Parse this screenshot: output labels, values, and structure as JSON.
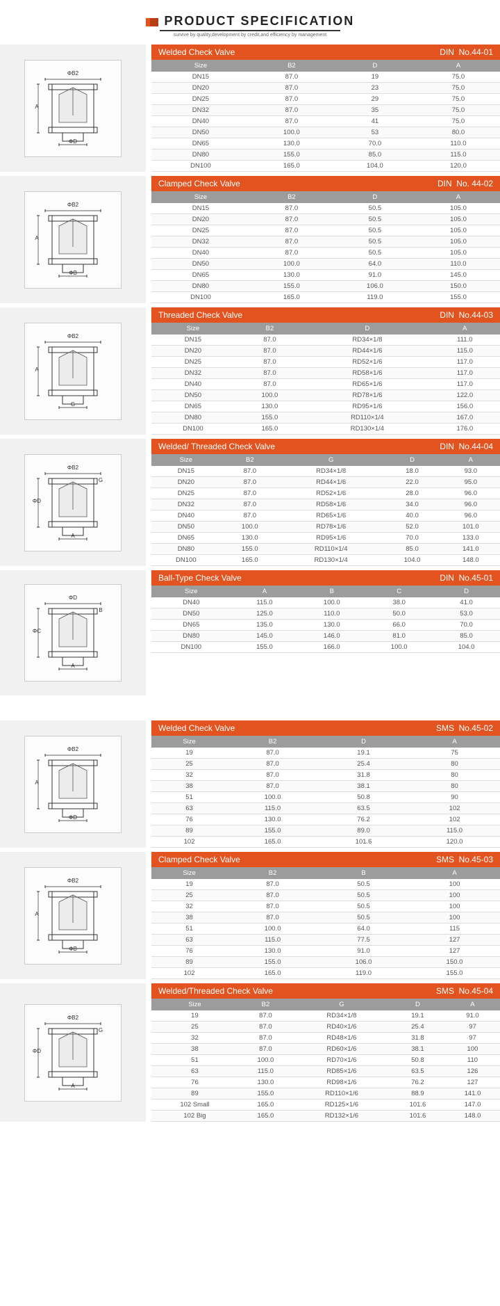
{
  "header": {
    "title": "PRODUCT SPECIFICATION",
    "subtitle": "survive by quality,development by credit,and efficiency by management"
  },
  "colors": {
    "accent": "#e2531f",
    "header_gray": "#9c9c9c",
    "diagram_bg": "#f1f1f1",
    "row_border": "#dddddd",
    "text": "#555555"
  },
  "sections": [
    {
      "title": "Welded Check Valve",
      "standard": "DIN",
      "part_no": "No.44-01",
      "diagram_labels": [
        "ΦB2",
        "A",
        "ΦD"
      ],
      "columns": [
        "Size",
        "B2",
        "D",
        "A"
      ],
      "rows": [
        [
          "DN15",
          "87.0",
          "19",
          "75.0"
        ],
        [
          "DN20",
          "87.0",
          "23",
          "75.0"
        ],
        [
          "DN25",
          "87.0",
          "29",
          "75.0"
        ],
        [
          "DN32",
          "87.0",
          "35",
          "75.0"
        ],
        [
          "DN40",
          "87.0",
          "41",
          "75.0"
        ],
        [
          "DN50",
          "100.0",
          "53",
          "80.0"
        ],
        [
          "DN65",
          "130.0",
          "70.0",
          "110.0"
        ],
        [
          "DN80",
          "155.0",
          "85.0",
          "115.0"
        ],
        [
          "DN100",
          "165.0",
          "104.0",
          "120.0"
        ]
      ]
    },
    {
      "title": "Clamped Check Valve",
      "standard": "DIN",
      "part_no": "No. 44-02",
      "diagram_labels": [
        "ΦB2",
        "A",
        "ΦB"
      ],
      "columns": [
        "Size",
        "B2",
        "D",
        "A"
      ],
      "rows": [
        [
          "DN15",
          "87.0",
          "50.5",
          "105.0"
        ],
        [
          "DN20",
          "87.0",
          "50.5",
          "105.0"
        ],
        [
          "DN25",
          "87.0",
          "50.5",
          "105.0"
        ],
        [
          "DN32",
          "87.0",
          "50.5",
          "105.0"
        ],
        [
          "DN40",
          "87.0",
          "50.5",
          "105.0"
        ],
        [
          "DN50",
          "100.0",
          "64.0",
          "110.0"
        ],
        [
          "DN65",
          "130.0",
          "91.0",
          "145.0"
        ],
        [
          "DN80",
          "155.0",
          "106.0",
          "150.0"
        ],
        [
          "DN100",
          "165.0",
          "119.0",
          "155.0"
        ]
      ]
    },
    {
      "title": "Threaded Check Valve",
      "standard": "DIN",
      "part_no": "No.44-03",
      "diagram_labels": [
        "ΦB2",
        "A",
        "G"
      ],
      "columns": [
        "Size",
        "B2",
        "D",
        "A"
      ],
      "rows": [
        [
          "DN15",
          "87.0",
          "RD34×1/8",
          "111.0"
        ],
        [
          "DN20",
          "87.0",
          "RD44×1/6",
          "115.0"
        ],
        [
          "DN25",
          "87.0",
          "RD52×1/6",
          "117.0"
        ],
        [
          "DN32",
          "87.0",
          "RD58×1/6",
          "117.0"
        ],
        [
          "DN40",
          "87.0",
          "RD65×1/6",
          "117.0"
        ],
        [
          "DN50",
          "100.0",
          "RD78×1/6",
          "122.0"
        ],
        [
          "DN65",
          "130.0",
          "RD95×1/6",
          "156.0"
        ],
        [
          "DN80",
          "155.0",
          "RD110×1/4",
          "167.0"
        ],
        [
          "DN100",
          "165.0",
          "RD130×1/4",
          "176.0"
        ]
      ]
    },
    {
      "title": "Welded/ Threaded Check Valve",
      "standard": "DIN",
      "part_no": "No.44-04",
      "diagram_labels": [
        "ΦB2",
        "ΦD",
        "A",
        "G"
      ],
      "columns": [
        "Size",
        "B2",
        "G",
        "D",
        "A"
      ],
      "rows": [
        [
          "DN15",
          "87.0",
          "RD34×1/8",
          "18.0",
          "93.0"
        ],
        [
          "DN20",
          "87.0",
          "RD44×1/6",
          "22.0",
          "95.0"
        ],
        [
          "DN25",
          "87.0",
          "RD52×1/6",
          "28.0",
          "96.0"
        ],
        [
          "DN32",
          "87.0",
          "RD58×1/6",
          "34.0",
          "96.0"
        ],
        [
          "DN40",
          "87.0",
          "RD65×1/6",
          "40.0",
          "96.0"
        ],
        [
          "DN50",
          "100.0",
          "RD78×1/6",
          "52.0",
          "101.0"
        ],
        [
          "DN65",
          "130.0",
          "RD95×1/6",
          "70.0",
          "133.0"
        ],
        [
          "DN80",
          "155.0",
          "RD110×1/4",
          "85.0",
          "141.0"
        ],
        [
          "DN100",
          "165.0",
          "RD130×1/4",
          "104.0",
          "148.0"
        ]
      ]
    },
    {
      "title": "Ball-Type Check Valve",
      "standard": "DIN",
      "part_no": "No.45-01",
      "diagram_labels": [
        "ΦD",
        "ΦC",
        "A",
        "B"
      ],
      "columns": [
        "Size",
        "A",
        "B",
        "C",
        "D"
      ],
      "rows": [
        [
          "DN40",
          "115.0",
          "100.0",
          "38.0",
          "41.0"
        ],
        [
          "DN50",
          "125.0",
          "110.0",
          "50.0",
          "53.0"
        ],
        [
          "DN65",
          "135.0",
          "130.0",
          "66.0",
          "70.0"
        ],
        [
          "DN80",
          "145.0",
          "146.0",
          "81.0",
          "85.0"
        ],
        [
          "DN100",
          "155.0",
          "166.0",
          "100.0",
          "104.0"
        ]
      ],
      "gap_after": true
    },
    {
      "title": "Welded Check Valve",
      "standard": "SMS",
      "part_no": "No.45-02",
      "diagram_labels": [
        "ΦB2",
        "A",
        "ΦD"
      ],
      "columns": [
        "Size",
        "B2",
        "D",
        "A"
      ],
      "rows": [
        [
          "19",
          "87.0",
          "19.1",
          "75"
        ],
        [
          "25",
          "87.0",
          "25.4",
          "80"
        ],
        [
          "32",
          "87.0",
          "31.8",
          "80"
        ],
        [
          "38",
          "87.0",
          "38.1",
          "80"
        ],
        [
          "51",
          "100.0",
          "50.8",
          "90"
        ],
        [
          "63",
          "115.0",
          "63.5",
          "102"
        ],
        [
          "76",
          "130.0",
          "76.2",
          "102"
        ],
        [
          "89",
          "155.0",
          "89.0",
          "115.0"
        ],
        [
          "102",
          "165.0",
          "101.6",
          "120.0"
        ]
      ]
    },
    {
      "title": "Clamped Check Valve",
      "standard": "SMS",
      "part_no": "No.45-03",
      "diagram_labels": [
        "ΦB2",
        "A",
        "ΦB"
      ],
      "columns": [
        "Size",
        "B2",
        "B",
        "A"
      ],
      "rows": [
        [
          "19",
          "87.0",
          "50.5",
          "100"
        ],
        [
          "25",
          "87.0",
          "50.5",
          "100"
        ],
        [
          "32",
          "87.0",
          "50.5",
          "100"
        ],
        [
          "38",
          "87.0",
          "50.5",
          "100"
        ],
        [
          "51",
          "100.0",
          "64.0",
          "115"
        ],
        [
          "63",
          "115.0",
          "77.5",
          "127"
        ],
        [
          "76",
          "130.0",
          "91.0",
          "127"
        ],
        [
          "89",
          "155.0",
          "106.0",
          "150.0"
        ],
        [
          "102",
          "165.0",
          "119.0",
          "155.0"
        ]
      ]
    },
    {
      "title": "Welded/Threaded Check Valve",
      "standard": "SMS",
      "part_no": "No.45-04",
      "diagram_labels": [
        "ΦB2",
        "ΦD",
        "A",
        "G"
      ],
      "columns": [
        "Size",
        "B2",
        "G",
        "D",
        "A"
      ],
      "rows": [
        [
          "19",
          "87.0",
          "RD34×1/8",
          "19.1",
          "91.0"
        ],
        [
          "25",
          "87.0",
          "RD40×1/6",
          "25.4",
          "97"
        ],
        [
          "32",
          "87.0",
          "RD48×1/6",
          "31.8",
          "97"
        ],
        [
          "38",
          "87.0",
          "RD60×1/6",
          "38.1",
          "100"
        ],
        [
          "51",
          "100.0",
          "RD70×1/6",
          "50.8",
          "110"
        ],
        [
          "63",
          "115.0",
          "RD85×1/6",
          "63.5",
          "126"
        ],
        [
          "76",
          "130.0",
          "RD98×1/6",
          "76.2",
          "127"
        ],
        [
          "89",
          "155.0",
          "RD110×1/6",
          "88.9",
          "141.0"
        ],
        [
          "102 Small",
          "165.0",
          "RD125×1/6",
          "101.6",
          "147.0"
        ],
        [
          "102 Big",
          "165.0",
          "RD132×1/6",
          "101.6",
          "148.0"
        ]
      ]
    }
  ]
}
